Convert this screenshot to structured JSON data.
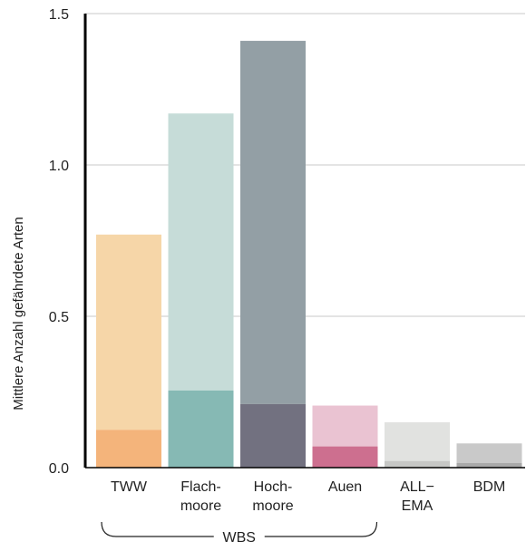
{
  "chart_data": {
    "type": "bar",
    "ylabel": "Mittlere Anzahl gefährdete Arten",
    "ylim": [
      0,
      1.5
    ],
    "yticks": [
      {
        "value": 0.0,
        "label": "0.0"
      },
      {
        "value": 0.5,
        "label": "0.5"
      },
      {
        "value": 1.0,
        "label": "1.0"
      },
      {
        "value": 1.5,
        "label": "1.5"
      }
    ],
    "grid": true,
    "categories": [
      {
        "label_lines": [
          "TWW"
        ],
        "total": 0.77,
        "lower": 0.125,
        "color_light": "#f6d6a8",
        "color_dark": "#f4b47b"
      },
      {
        "label_lines": [
          "Flach-",
          "moore"
        ],
        "total": 1.17,
        "lower": 0.255,
        "color_light": "#c6dcd8",
        "color_dark": "#86b9b4"
      },
      {
        "label_lines": [
          "Hoch-",
          "moore"
        ],
        "total": 1.41,
        "lower": 0.21,
        "color_light": "#939fa5",
        "color_dark": "#727180"
      },
      {
        "label_lines": [
          "Auen"
        ],
        "total": 0.205,
        "lower": 0.07,
        "color_light": "#eac3d2",
        "color_dark": "#cd6f8f"
      },
      {
        "label_lines": [
          "ALL−",
          "EMA"
        ],
        "total": 0.15,
        "lower": 0.022,
        "color_light": "#e1e2e0",
        "color_dark": "#c6c7c5"
      },
      {
        "label_lines": [
          "BDM"
        ],
        "total": 0.08,
        "lower": 0.015,
        "color_light": "#c9c9c9",
        "color_dark": "#a9a9a9"
      }
    ],
    "group_bracket": {
      "label": "WBS",
      "from_index": 0,
      "to_index": 3
    }
  }
}
